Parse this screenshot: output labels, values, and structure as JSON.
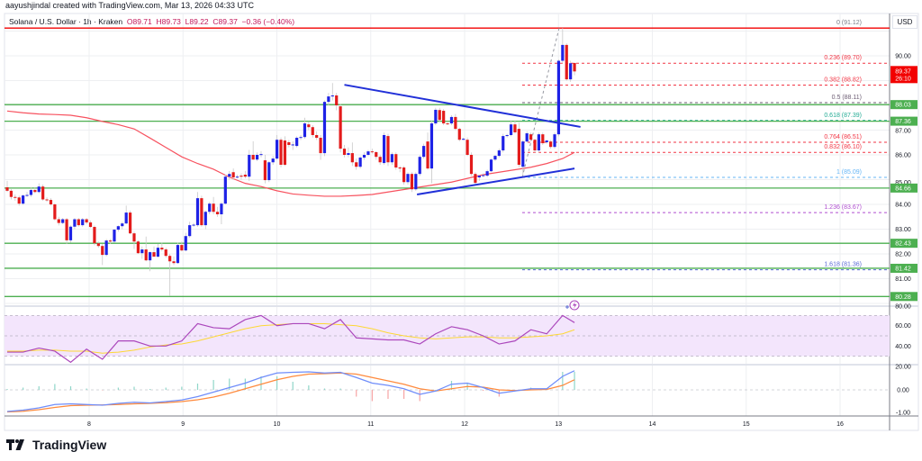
{
  "credit": "aayushjindal created with TradingView.com, Mar 13, 2026 04:33 UTC",
  "legend": {
    "symbol": "Solana / U.S. Dollar · 1h · Kraken",
    "open": "O89.71",
    "high": "H89.73",
    "low": "L89.22",
    "close": "C89.37",
    "change": "−0.36 (−0.40%)"
  },
  "currency_button": "USD",
  "brand": "TradingView",
  "colors": {
    "up": "#1e22e6",
    "down": "#e31b1b",
    "ma": "#f7525f",
    "support": "#4caf50",
    "trendline": "#2130d8",
    "rsi": "#ab47bc",
    "rsi_ma": "#fdd835",
    "rsi_band": "#f3e5fc",
    "macd": "#6f8dfa",
    "signal": "#ff8a3d",
    "hist_up": "#8fd6c9",
    "hist_down": "#f7a4a4",
    "last_price": "#f20000"
  },
  "chart_data": [
    {
      "type": "candlestick",
      "title": "Solana / U.S. Dollar · 1h · Kraken",
      "interval": "1h",
      "x_ticks": [
        "8",
        "9",
        "10",
        "11",
        "12",
        "13",
        "14",
        "15",
        "16"
      ],
      "y_ticks": [
        "90.00",
        "87.00",
        "86.00",
        "85.00",
        "84.00",
        "83.00",
        "82.00",
        "81.00",
        "80.00"
      ],
      "ylim": [
        79.9,
        91.3
      ],
      "grid": true,
      "candles_ohlc": [
        [
          84.69,
          84.95,
          84.5,
          84.55
        ],
        [
          84.55,
          84.62,
          84.2,
          84.3
        ],
        [
          84.3,
          84.4,
          84.15,
          84.28
        ],
        [
          84.28,
          84.35,
          83.95,
          84.03
        ],
        [
          84.03,
          84.4,
          83.98,
          84.36
        ],
        [
          84.36,
          84.5,
          84.3,
          84.38
        ],
        [
          84.38,
          84.7,
          84.3,
          84.58
        ],
        [
          84.58,
          84.7,
          84.45,
          84.5
        ],
        [
          84.5,
          84.85,
          84.45,
          84.72
        ],
        [
          84.72,
          84.8,
          84.15,
          84.2
        ],
        [
          84.2,
          84.28,
          84.1,
          84.18
        ],
        [
          84.18,
          84.25,
          83.95,
          84.0
        ],
        [
          84.0,
          84.05,
          83.35,
          83.4
        ],
        [
          83.4,
          83.5,
          83.15,
          83.25
        ],
        [
          83.25,
          83.45,
          83.2,
          83.4
        ],
        [
          83.4,
          83.45,
          82.4,
          82.55
        ],
        [
          82.55,
          83.15,
          82.45,
          83.1
        ],
        [
          83.1,
          83.45,
          83.0,
          83.4
        ],
        [
          83.4,
          83.45,
          83.1,
          83.16
        ],
        [
          83.16,
          83.45,
          83.1,
          83.4
        ],
        [
          83.4,
          83.45,
          83.2,
          83.27
        ],
        [
          83.27,
          83.35,
          83.05,
          83.09
        ],
        [
          83.09,
          83.15,
          82.35,
          82.43
        ],
        [
          82.43,
          82.5,
          82.25,
          82.32
        ],
        [
          82.32,
          82.4,
          81.55,
          81.96
        ],
        [
          81.96,
          82.6,
          81.9,
          82.54
        ],
        [
          82.54,
          82.6,
          82.4,
          82.5
        ],
        [
          82.5,
          83.0,
          82.45,
          82.98
        ],
        [
          82.98,
          83.15,
          82.9,
          83.12
        ],
        [
          83.12,
          83.3,
          83.0,
          83.23
        ],
        [
          83.23,
          83.95,
          83.2,
          83.67
        ],
        [
          83.67,
          83.75,
          82.8,
          82.83
        ],
        [
          82.83,
          82.9,
          82.2,
          82.5
        ],
        [
          82.5,
          82.55,
          82.0,
          82.03
        ],
        [
          82.03,
          82.3,
          81.8,
          82.18
        ],
        [
          82.18,
          82.7,
          81.7,
          81.74
        ],
        [
          81.74,
          82.1,
          81.3,
          82.07
        ],
        [
          82.07,
          82.3,
          81.9,
          81.89
        ],
        [
          81.89,
          82.4,
          81.85,
          82.25
        ],
        [
          82.25,
          82.45,
          82.1,
          82.18
        ],
        [
          82.18,
          82.25,
          81.85,
          81.92
        ],
        [
          81.92,
          82.0,
          80.3,
          81.7
        ],
        [
          81.7,
          81.9,
          81.55,
          81.63
        ],
        [
          81.63,
          82.45,
          81.6,
          82.36
        ],
        [
          82.36,
          82.5,
          82.1,
          82.14
        ],
        [
          82.14,
          82.85,
          82.1,
          82.72
        ],
        [
          82.72,
          83.3,
          82.65,
          83.16
        ],
        [
          83.16,
          83.25,
          83.1,
          83.18
        ],
        [
          83.16,
          84.5,
          83.1,
          84.25
        ],
        [
          84.25,
          84.35,
          83.1,
          83.16
        ],
        [
          83.16,
          83.75,
          83.0,
          83.7
        ],
        [
          83.7,
          84.1,
          83.6,
          84.03
        ],
        [
          84.03,
          84.3,
          83.6,
          83.7
        ],
        [
          83.7,
          83.9,
          83.5,
          83.6
        ],
        [
          83.6,
          84.1,
          83.2,
          84.03
        ],
        [
          84.03,
          85.2,
          84.0,
          85.12
        ],
        [
          85.12,
          85.35,
          85.0,
          85.23
        ],
        [
          85.3,
          85.45,
          85.0,
          85.09
        ],
        [
          85.09,
          85.2,
          85.05,
          85.12
        ],
        [
          85.16,
          85.25,
          85.0,
          85.12
        ],
        [
          85.2,
          85.35,
          85.05,
          85.12
        ],
        [
          85.12,
          86.2,
          84.95,
          86.0
        ],
        [
          86.0,
          86.55,
          85.8,
          85.81
        ],
        [
          85.81,
          86.1,
          85.75,
          86.0
        ],
        [
          86.0,
          86.15,
          85.9,
          86.03
        ],
        [
          85.78,
          86.0,
          84.85,
          84.98
        ],
        [
          84.98,
          85.75,
          84.9,
          85.7
        ],
        [
          85.7,
          85.95,
          85.6,
          85.85
        ],
        [
          85.85,
          86.8,
          85.8,
          86.61
        ],
        [
          86.61,
          86.7,
          85.5,
          85.6
        ],
        [
          86.58,
          86.75,
          85.55,
          85.6
        ],
        [
          86.51,
          86.6,
          86.3,
          86.4
        ],
        [
          86.4,
          86.55,
          86.2,
          86.42
        ],
        [
          86.36,
          86.75,
          86.3,
          86.69
        ],
        [
          86.69,
          86.8,
          86.6,
          86.72
        ],
        [
          86.72,
          87.5,
          86.65,
          87.27
        ],
        [
          87.23,
          87.35,
          87.0,
          87.12
        ],
        [
          87.12,
          87.2,
          86.7,
          86.8
        ],
        [
          86.8,
          86.95,
          86.6,
          86.69
        ],
        [
          86.69,
          86.8,
          85.8,
          86.07
        ],
        [
          86.07,
          88.2,
          85.95,
          88.14
        ],
        [
          88.14,
          88.5,
          88.0,
          88.36
        ],
        [
          88.36,
          88.9,
          88.2,
          88.4
        ],
        [
          88.4,
          88.5,
          87.8,
          88.0
        ],
        [
          87.96,
          88.05,
          86.1,
          86.25
        ],
        [
          86.25,
          86.4,
          85.9,
          86.0
        ],
        [
          86.0,
          86.3,
          85.9,
          86.07
        ],
        [
          86.07,
          86.5,
          85.55,
          85.7
        ],
        [
          85.7,
          85.85,
          85.4,
          85.52
        ],
        [
          85.52,
          85.95,
          85.45,
          85.89
        ],
        [
          85.89,
          86.1,
          85.8,
          86.0
        ],
        [
          86.0,
          86.2,
          85.95,
          86.14
        ],
        [
          86.14,
          86.25,
          86.05,
          86.11
        ],
        [
          86.11,
          86.15,
          85.8,
          85.92
        ],
        [
          85.92,
          86.0,
          85.6,
          85.7
        ],
        [
          85.67,
          86.9,
          85.6,
          86.8
        ],
        [
          86.76,
          86.85,
          85.55,
          85.7
        ],
        [
          85.7,
          86.1,
          85.6,
          86.03
        ],
        [
          86.03,
          86.1,
          85.4,
          85.49
        ],
        [
          85.49,
          85.55,
          85.3,
          85.45
        ],
        [
          85.49,
          85.55,
          84.8,
          84.9
        ],
        [
          84.9,
          85.3,
          84.8,
          85.23
        ],
        [
          85.23,
          85.3,
          84.5,
          84.61
        ],
        [
          84.61,
          85.3,
          84.55,
          85.23
        ],
        [
          85.23,
          86.0,
          85.15,
          85.92
        ],
        [
          85.92,
          86.45,
          85.85,
          86.36
        ],
        [
          86.54,
          86.9,
          85.4,
          85.45
        ],
        [
          85.45,
          87.4,
          84.85,
          87.27
        ],
        [
          87.27,
          87.9,
          87.2,
          87.82
        ],
        [
          87.81,
          87.9,
          87.35,
          87.41
        ],
        [
          87.78,
          87.85,
          87.2,
          87.27
        ],
        [
          87.27,
          87.35,
          87.2,
          87.25
        ],
        [
          87.27,
          87.6,
          87.2,
          87.53
        ],
        [
          87.53,
          87.65,
          87.0,
          87.05
        ],
        [
          87.05,
          87.1,
          86.55,
          86.61
        ],
        [
          86.61,
          86.7,
          86.6,
          86.65
        ],
        [
          86.61,
          86.7,
          85.95,
          86.0
        ],
        [
          86.0,
          86.1,
          85.15,
          85.23
        ],
        [
          85.23,
          85.3,
          84.8,
          84.87
        ],
        [
          85.09,
          85.2,
          84.95,
          85.16
        ],
        [
          85.16,
          85.25,
          85.1,
          85.18
        ],
        [
          85.16,
          85.4,
          85.1,
          85.34
        ],
        [
          85.34,
          85.85,
          85.3,
          85.81
        ],
        [
          85.81,
          86.0,
          85.75,
          85.96
        ],
        [
          85.96,
          86.25,
          85.9,
          86.18
        ],
        [
          86.18,
          86.85,
          86.1,
          86.76
        ],
        [
          86.76,
          86.85,
          86.7,
          86.8
        ],
        [
          86.8,
          87.4,
          86.75,
          87.23
        ],
        [
          87.23,
          87.4,
          86.85,
          86.91
        ],
        [
          87.05,
          87.3,
          85.5,
          85.6
        ],
        [
          85.52,
          86.6,
          85.1,
          86.54
        ],
        [
          86.54,
          86.95,
          86.5,
          86.87
        ],
        [
          86.83,
          86.9,
          86.55,
          86.61
        ],
        [
          86.61,
          86.65,
          86.1,
          86.18
        ],
        [
          86.18,
          86.9,
          86.1,
          86.83
        ],
        [
          86.83,
          86.9,
          86.4,
          86.47
        ],
        [
          86.51,
          86.6,
          86.45,
          86.58
        ],
        [
          86.54,
          86.6,
          86.25,
          86.32
        ],
        [
          86.32,
          86.9,
          86.25,
          86.83
        ],
        [
          86.83,
          89.85,
          86.75,
          89.8
        ],
        [
          89.8,
          91.12,
          89.7,
          90.44
        ],
        [
          90.44,
          90.5,
          89.0,
          89.05
        ],
        [
          89.05,
          89.8,
          88.95,
          89.7
        ],
        [
          89.71,
          89.73,
          89.22,
          89.37
        ]
      ],
      "indicator_sample_candles": [
        0,
        4,
        8,
        12,
        16,
        20,
        24,
        28,
        32,
        36,
        40,
        44,
        48,
        52,
        56,
        60,
        64,
        68,
        72,
        76,
        80,
        84,
        88,
        92,
        96,
        100,
        104,
        108,
        112,
        116,
        120,
        124,
        128,
        132,
        136,
        140,
        143
      ],
      "moving_average": [
        87.77,
        87.7,
        87.65,
        87.63,
        87.6,
        87.5,
        87.35,
        87.22,
        87.05,
        86.68,
        86.3,
        85.92,
        85.65,
        85.42,
        85.1,
        84.85,
        84.72,
        84.55,
        84.42,
        84.37,
        84.33,
        84.33,
        84.36,
        84.4,
        84.5,
        84.6,
        84.7,
        84.8,
        84.9,
        85.05,
        85.2,
        85.3,
        85.4,
        85.5,
        85.65,
        85.85,
        86.1
      ],
      "support_levels": [
        "88.03",
        "87.36",
        "84.66",
        "82.43",
        "81.42",
        "80.28"
      ],
      "last_price": "89.37",
      "countdown": "26:10",
      "fib_retracement": [
        {
          "label": "0 (91.12)",
          "price": 91.12,
          "color": "#787b86"
        },
        {
          "label": "0.236 (89.70)",
          "price": 89.7,
          "color": "#f23645"
        },
        {
          "label": "0.382 (88.82)",
          "price": 88.82,
          "color": "#f23645"
        },
        {
          "label": "0.5 (88.11)",
          "price": 88.11,
          "color": "#6d5e74"
        },
        {
          "label": "0.618 (87.39)",
          "price": 87.39,
          "color": "#22ab94"
        },
        {
          "label": "0.764 (86.51)",
          "price": 86.51,
          "color": "#f23645"
        },
        {
          "label": "0.832 (86.10)",
          "price": 86.1,
          "color": "#f23645"
        },
        {
          "label": "1 (85.09)",
          "price": 85.09,
          "color": "#64b5f6"
        },
        {
          "label": "1.236 (83.67)",
          "price": 83.67,
          "color": "#b04fd0"
        },
        {
          "label": "1.618 (81.36)",
          "price": 81.36,
          "color": "#5b6bd6"
        }
      ],
      "trendlines": [
        {
          "from_candle": 85,
          "from_price": 88.83,
          "to_candle": 144.5,
          "to_price": 87.13
        },
        {
          "from_candle": 103.3,
          "from_price": 84.4,
          "to_candle": 143,
          "to_price": 85.45
        }
      ]
    },
    {
      "type": "line",
      "indicator": "RSI",
      "y_ticks": [
        "60.00",
        "40.00",
        "20.00"
      ],
      "band": [
        30,
        70
      ],
      "rsi": [
        34,
        34,
        38,
        35,
        24,
        37,
        27,
        45,
        45,
        40,
        40,
        45,
        62,
        58,
        57,
        66,
        70,
        60,
        62,
        62,
        57,
        66,
        48,
        47,
        46,
        46,
        42,
        52,
        59,
        56,
        50,
        42,
        45,
        56,
        52,
        70,
        63
      ],
      "rsi_ma": [
        35,
        35,
        36,
        36,
        35,
        35,
        33,
        34,
        36,
        39,
        41,
        42,
        45,
        49,
        53,
        57,
        60,
        61,
        62,
        62,
        62,
        61,
        60,
        57,
        53,
        50,
        48,
        47,
        48,
        49,
        49,
        48,
        48,
        49,
        50,
        52,
        56
      ]
    },
    {
      "type": "line",
      "indicator": "MACD",
      "y_ticks": [
        "0.00",
        "-1.00"
      ],
      "macd": [
        -0.96,
        -0.9,
        -0.8,
        -0.65,
        -0.62,
        -0.65,
        -0.68,
        -0.6,
        -0.55,
        -0.58,
        -0.52,
        -0.45,
        -0.3,
        -0.1,
        0.1,
        0.3,
        0.55,
        0.75,
        0.78,
        0.8,
        0.75,
        0.78,
        0.55,
        0.3,
        0.2,
        0.05,
        -0.2,
        -0.05,
        0.25,
        0.3,
        0.1,
        -0.15,
        -0.05,
        0.05,
        0.05,
        0.6,
        0.85
      ],
      "signal": [
        -0.98,
        -0.95,
        -0.88,
        -0.78,
        -0.7,
        -0.68,
        -0.67,
        -0.65,
        -0.62,
        -0.6,
        -0.57,
        -0.52,
        -0.44,
        -0.32,
        -0.15,
        0.05,
        0.25,
        0.45,
        0.6,
        0.7,
        0.72,
        0.75,
        0.7,
        0.55,
        0.4,
        0.25,
        0.05,
        -0.05,
        0.05,
        0.15,
        0.12,
        0.0,
        -0.03,
        0.0,
        0.02,
        0.2,
        0.45
      ]
    }
  ]
}
